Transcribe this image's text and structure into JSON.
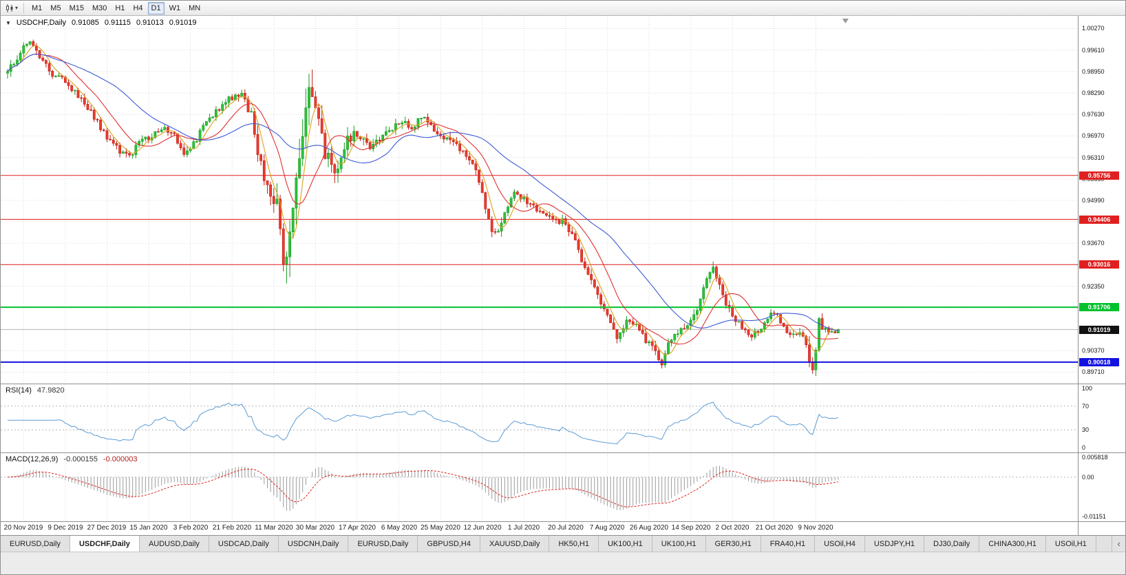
{
  "colors": {
    "bull": "#2cc33a",
    "bull_border": "#149a1e",
    "bear": "#ea3c30",
    "bear_border": "#c11d15",
    "ma_fast": "#d9a21b",
    "ma_mid": "#e03030",
    "ma_slow": "#3c5bd6",
    "rsi_line": "#5b9bd5",
    "macd_hist": "#9a9a9a",
    "macd_signal": "#e02020",
    "grid": "#dadada",
    "bid_line": "#b8b8b8"
  },
  "icons": {
    "chart_dropdown_caret": "▾",
    "collapse_triangle": "▼",
    "tab_scroll_left": "‹",
    "chart_shift_marker": "triangle-down"
  },
  "toolbar": {
    "timeframes": [
      "M1",
      "M5",
      "M15",
      "M30",
      "H1",
      "H4",
      "D1",
      "W1",
      "MN"
    ],
    "active_timeframe": "D1"
  },
  "chart_header": {
    "symbol": "USDCHF,Daily",
    "open": "0.91085",
    "high": "0.91115",
    "low": "0.91013",
    "close": "0.91019"
  },
  "rsi_panel": {
    "label": "RSI(14)",
    "value": "47.9820",
    "axis_labels": [
      "100",
      "70",
      "30",
      "0"
    ],
    "levels": [
      70,
      30
    ]
  },
  "macd_panel": {
    "label": "MACD(12,26,9)",
    "value_main": "-0.000155",
    "value_signal": "-0.000003",
    "axis_labels": [
      "0.005818",
      "0.00",
      "-0.01151"
    ],
    "range": [
      -0.01151,
      0.005818
    ]
  },
  "chart_data": {
    "type": "candlestick",
    "symbol": "USDCHF",
    "timeframe": "Daily",
    "candle_count": 260,
    "price_range": [
      0.8936,
      1.0066
    ],
    "price_axis_ticks": [
      "1.00270",
      "0.99610",
      "0.98950",
      "0.98290",
      "0.97630",
      "0.96970",
      "0.96310",
      "0.95650",
      "0.94990",
      "0.94330",
      "0.93670",
      "0.93010",
      "0.92350",
      "0.91690",
      "0.91030",
      "0.90370",
      "0.89710"
    ],
    "x_labels": [
      "20 Nov 2019",
      "9 Dec 2019",
      "27 Dec 2019",
      "15 Jan 2020",
      "3 Feb 2020",
      "21 Feb 2020",
      "11 Mar 2020",
      "30 Mar 2020",
      "17 Apr 2020",
      "6 May 2020",
      "25 May 2020",
      "12 Jun 2020",
      "1 Jul 2020",
      "20 Jul 2020",
      "7 Aug 2020",
      "26 Aug 2020",
      "14 Sep 2020",
      "2 Oct 2020",
      "21 Oct 2020",
      "9 Nov 2020"
    ],
    "x_label_first_index": 5,
    "x_label_step": 13,
    "last_close": 0.91019,
    "close_anchors": [
      [
        0,
        0.989
      ],
      [
        3,
        0.994
      ],
      [
        7,
        0.999
      ],
      [
        10,
        0.994
      ],
      [
        14,
        0.989
      ],
      [
        18,
        0.987
      ],
      [
        24,
        0.9795
      ],
      [
        28,
        0.974
      ],
      [
        31,
        0.969
      ],
      [
        35,
        0.965
      ],
      [
        38,
        0.963
      ],
      [
        41,
        0.968
      ],
      [
        45,
        0.9695
      ],
      [
        48,
        0.972
      ],
      [
        52,
        0.97
      ],
      [
        55,
        0.964
      ],
      [
        58,
        0.967
      ],
      [
        62,
        0.974
      ],
      [
        66,
        0.978
      ],
      [
        70,
        0.9815
      ],
      [
        73,
        0.9825
      ],
      [
        76,
        0.976
      ],
      [
        79,
        0.96
      ],
      [
        81,
        0.956
      ],
      [
        84,
        0.948
      ],
      [
        86,
        0.93
      ],
      [
        88,
        0.942
      ],
      [
        90,
        0.956
      ],
      [
        92,
        0.97
      ],
      [
        94,
        0.982
      ],
      [
        96,
        0.976
      ],
      [
        98,
        0.968
      ],
      [
        100,
        0.962
      ],
      [
        102,
        0.956
      ],
      [
        104,
        0.962
      ],
      [
        106,
        0.968
      ],
      [
        108,
        0.972
      ],
      [
        111,
        0.968
      ],
      [
        114,
        0.966
      ],
      [
        117,
        0.97
      ],
      [
        120,
        0.972
      ],
      [
        123,
        0.9745
      ],
      [
        126,
        0.972
      ],
      [
        129,
        0.976
      ],
      [
        132,
        0.973
      ],
      [
        135,
        0.97
      ],
      [
        138,
        0.968
      ],
      [
        141,
        0.966
      ],
      [
        144,
        0.962
      ],
      [
        147,
        0.956
      ],
      [
        150,
        0.944
      ],
      [
        152,
        0.939
      ],
      [
        155,
        0.945
      ],
      [
        158,
        0.952
      ],
      [
        161,
        0.95
      ],
      [
        164,
        0.948
      ],
      [
        167,
        0.946
      ],
      [
        170,
        0.944
      ],
      [
        173,
        0.9435
      ],
      [
        176,
        0.939
      ],
      [
        179,
        0.932
      ],
      [
        182,
        0.925
      ],
      [
        185,
        0.918
      ],
      [
        188,
        0.912
      ],
      [
        190,
        0.908
      ],
      [
        193,
        0.913
      ],
      [
        196,
        0.911
      ],
      [
        199,
        0.907
      ],
      [
        202,
        0.903
      ],
      [
        204,
        0.8998
      ],
      [
        206,
        0.906
      ],
      [
        209,
        0.909
      ],
      [
        212,
        0.911
      ],
      [
        215,
        0.915
      ],
      [
        218,
        0.926
      ],
      [
        220,
        0.929
      ],
      [
        222,
        0.924
      ],
      [
        224,
        0.918
      ],
      [
        226,
        0.914
      ],
      [
        229,
        0.911
      ],
      [
        232,
        0.908
      ],
      [
        235,
        0.911
      ],
      [
        238,
        0.916
      ],
      [
        241,
        0.913
      ],
      [
        244,
        0.908
      ],
      [
        247,
        0.91
      ],
      [
        249,
        0.905
      ],
      [
        251,
        0.8975
      ],
      [
        252,
        0.905
      ],
      [
        253,
        0.913
      ],
      [
        255,
        0.91
      ],
      [
        257,
        0.909
      ],
      [
        259,
        0.91019
      ]
    ],
    "volatility_anchors": [
      [
        0,
        0.003
      ],
      [
        10,
        0.0026
      ],
      [
        40,
        0.0022
      ],
      [
        60,
        0.0024
      ],
      [
        75,
        0.003
      ],
      [
        80,
        0.006
      ],
      [
        86,
        0.011
      ],
      [
        94,
        0.01
      ],
      [
        100,
        0.007
      ],
      [
        106,
        0.005
      ],
      [
        112,
        0.003
      ],
      [
        130,
        0.0025
      ],
      [
        146,
        0.0035
      ],
      [
        152,
        0.0032
      ],
      [
        160,
        0.0024
      ],
      [
        170,
        0.0022
      ],
      [
        180,
        0.003
      ],
      [
        190,
        0.0028
      ],
      [
        205,
        0.0026
      ],
      [
        218,
        0.003
      ],
      [
        228,
        0.0024
      ],
      [
        246,
        0.002
      ],
      [
        250,
        0.0045
      ],
      [
        253,
        0.0035
      ],
      [
        259,
        0.0015
      ]
    ],
    "levels": [
      {
        "price": 0.95756,
        "label": "0.95756",
        "color": "#e02020",
        "width": 1
      },
      {
        "price": 0.94406,
        "label": "0.94406",
        "color": "#e02020",
        "width": 1
      },
      {
        "price": 0.93016,
        "label": "0.93016",
        "color": "#e02020",
        "width": 1
      },
      {
        "price": 0.91706,
        "label": "0.91706",
        "color": "#00c22d",
        "width": 2
      },
      {
        "price": 0.90018,
        "label": "0.90018",
        "color": "#1212e0",
        "width": 2
      }
    ],
    "current_price": {
      "value": 0.91019,
      "label": "0.91019",
      "color": "#111111"
    },
    "moving_averages": [
      {
        "period": 5,
        "color": "#d9a21b"
      },
      {
        "period": 13,
        "color": "#e03030"
      },
      {
        "period": 34,
        "color": "#3c5bd6"
      }
    ],
    "rsi": {
      "period": 14,
      "current": 47.982
    },
    "macd": {
      "fast": 12,
      "slow": 26,
      "signal": 9,
      "current_main": -0.000155,
      "current_signal": -3e-06
    }
  },
  "bottom_tabs": {
    "tabs": [
      {
        "label": "EURUSD,Daily",
        "active": false
      },
      {
        "label": "USDCHF,Daily",
        "active": true
      },
      {
        "label": "AUDUSD,Daily",
        "active": false
      },
      {
        "label": "USDCAD,Daily",
        "active": false
      },
      {
        "label": "USDCNH,Daily",
        "active": false
      },
      {
        "label": "EURUSD,Daily",
        "active": false
      },
      {
        "label": "GBPUSD,H4",
        "active": false
      },
      {
        "label": "XAUUSD,Daily",
        "active": false
      },
      {
        "label": "HK50,H1",
        "active": false
      },
      {
        "label": "UK100,H1",
        "active": false
      },
      {
        "label": "UK100,H1",
        "active": false
      },
      {
        "label": "GER30,H1",
        "active": false
      },
      {
        "label": "FRA40,H1",
        "active": false
      },
      {
        "label": "USOil,H4",
        "active": false
      },
      {
        "label": "USDJPY,H1",
        "active": false
      },
      {
        "label": "DJ30,Daily",
        "active": false
      },
      {
        "label": "CHINA300,H1",
        "active": false
      },
      {
        "label": "USOil,H1",
        "active": false
      }
    ]
  }
}
